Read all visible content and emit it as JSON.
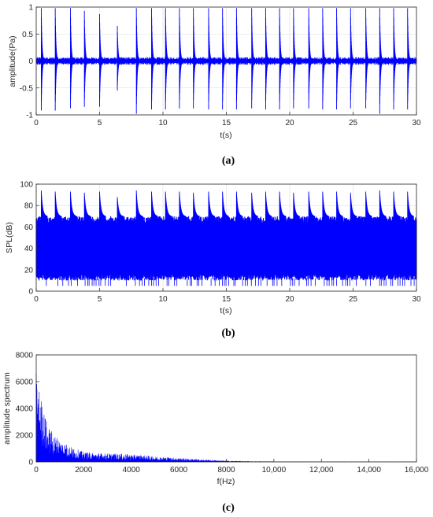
{
  "chart_data": [
    {
      "type": "line",
      "caption": "(a)",
      "title": "",
      "xlabel": "t(s)",
      "ylabel": "amplitude(Pa)",
      "xlim": [
        0,
        30
      ],
      "ylim": [
        -1,
        1
      ],
      "xticks": [
        0,
        5,
        10,
        15,
        20,
        25,
        30
      ],
      "yticks": [
        -1,
        -0.5,
        0,
        0.5,
        1
      ],
      "grid": true,
      "color": "#0000ff",
      "series": [
        {
          "impulse_times_s": [
            0.4,
            1.5,
            2.7,
            3.8,
            5.0,
            6.4,
            7.9,
            9.1,
            10.2,
            11.3,
            12.4,
            13.6,
            14.7,
            15.8,
            17.0,
            18.1,
            19.2,
            20.3,
            21.5,
            22.6,
            23.7,
            24.8,
            26.0,
            27.1,
            28.2,
            29.3
          ],
          "positive_peak": [
            0.98,
            0.98,
            0.98,
            0.93,
            0.87,
            0.65,
            0.98,
            0.98,
            0.98,
            0.98,
            0.98,
            0.98,
            0.98,
            0.98,
            0.98,
            0.98,
            0.98,
            0.98,
            0.98,
            0.98,
            0.98,
            0.98,
            0.98,
            0.98,
            0.98,
            0.98
          ],
          "negative_peak": [
            -0.92,
            -0.92,
            -0.88,
            -0.85,
            -0.85,
            -0.55,
            -0.98,
            -0.9,
            -0.9,
            -0.88,
            -0.88,
            -0.9,
            -0.9,
            -0.9,
            -0.88,
            -0.9,
            -0.9,
            -0.88,
            -0.88,
            -0.9,
            -0.9,
            -0.88,
            -0.88,
            -0.98,
            -0.9,
            -0.9
          ],
          "noise_floor": 0.06
        }
      ]
    },
    {
      "type": "line",
      "caption": "(b)",
      "title": "",
      "xlabel": "t(s)",
      "ylabel": "SPL(dB)",
      "xlim": [
        0,
        30
      ],
      "ylim": [
        0,
        100
      ],
      "xticks": [
        0,
        5,
        10,
        15,
        20,
        25,
        30
      ],
      "yticks": [
        0,
        20,
        40,
        60,
        80,
        100
      ],
      "grid": true,
      "color": "#0000ff",
      "series": [
        {
          "impulse_times_s": [
            0.4,
            1.5,
            2.7,
            3.8,
            5.0,
            6.4,
            7.9,
            9.1,
            10.2,
            11.3,
            12.4,
            13.6,
            14.7,
            15.8,
            17.0,
            18.1,
            19.2,
            20.3,
            21.5,
            22.6,
            23.7,
            24.8,
            26.0,
            27.1,
            28.2,
            29.3
          ],
          "peak_db": [
            94,
            93,
            93,
            92,
            93,
            88,
            94,
            93,
            93,
            93,
            92,
            93,
            93,
            93,
            92,
            93,
            93,
            92,
            93,
            93,
            93,
            92,
            93,
            94,
            93,
            93
          ],
          "band_top_db": 70,
          "band_bottom_db": 10,
          "dip_bottom_db": 5
        }
      ]
    },
    {
      "type": "line",
      "caption": "(c)",
      "title": "",
      "xlabel": "f(Hz)",
      "ylabel": "amplitude spectrum",
      "xlim": [
        0,
        16000
      ],
      "ylim": [
        0,
        8000
      ],
      "xticks": [
        0,
        2000,
        4000,
        6000,
        8000,
        10000,
        12000,
        14000,
        16000
      ],
      "xtick_labels": [
        "0",
        "2000",
        "4000",
        "6000",
        "8000",
        "10,000",
        "12,000",
        "14,000",
        "16,000"
      ],
      "yticks": [
        0,
        2000,
        4000,
        6000,
        8000
      ],
      "grid": false,
      "color": "#0000ff",
      "series": [
        {
          "envelope_f_hz": [
            0,
            50,
            150,
            300,
            500,
            800,
            1000,
            1500,
            2000,
            2500,
            3000,
            3500,
            4000,
            4500,
            5000,
            6000,
            7000,
            8000,
            9000,
            10000,
            12000,
            14000,
            16000
          ],
          "envelope_amp": [
            6900,
            6200,
            5400,
            4000,
            2700,
            2000,
            1700,
            1100,
            750,
            680,
            640,
            620,
            560,
            500,
            420,
            300,
            180,
            90,
            50,
            35,
            25,
            20,
            15
          ]
        }
      ]
    }
  ]
}
